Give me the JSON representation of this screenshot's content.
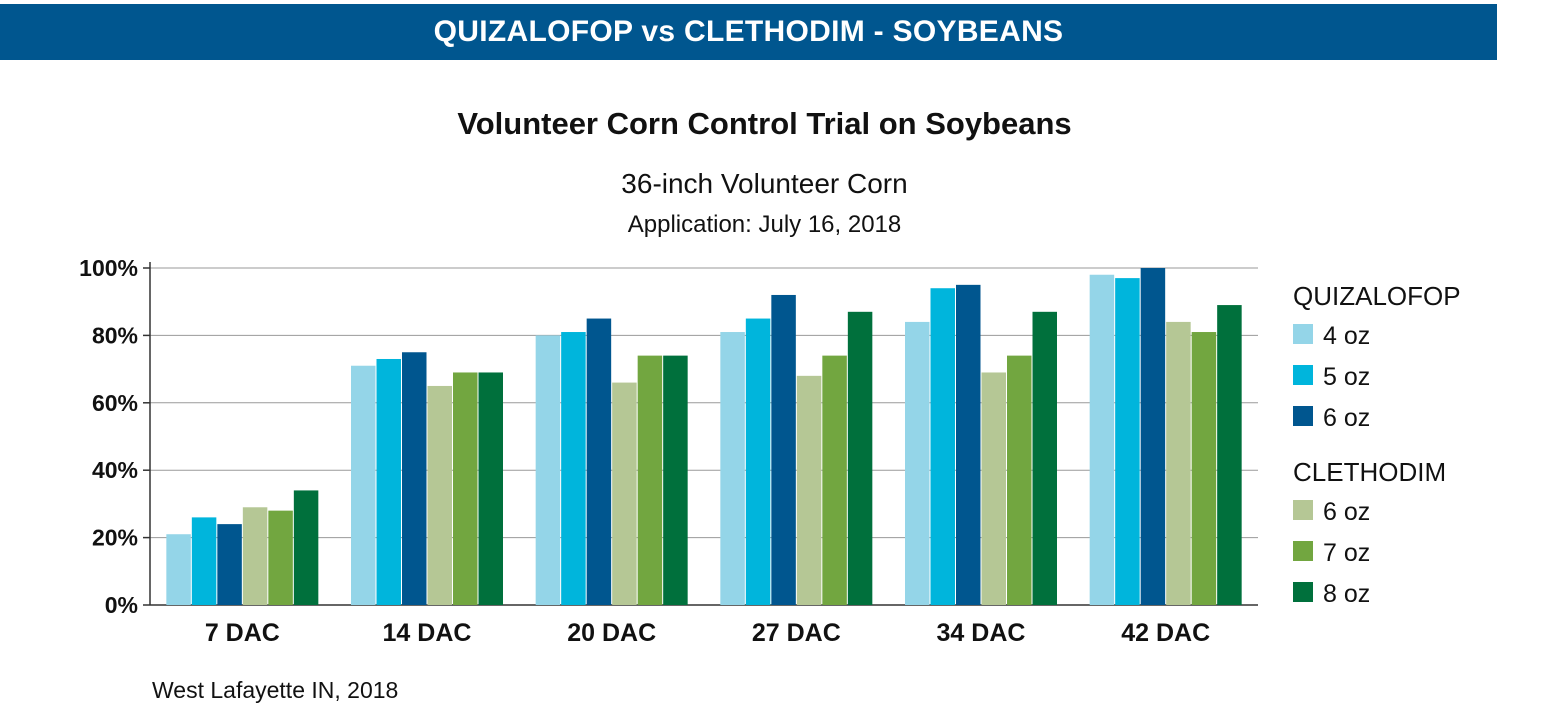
{
  "banner": {
    "text": "QUIZALOFOP vs CLETHODIM - SOYBEANS",
    "color": "#00568f"
  },
  "footnote": "West Lafayette IN, 2018",
  "chart_data": {
    "type": "bar",
    "title": "Volunteer Corn Control Trial on Soybeans",
    "subtitle": "36-inch Volunteer Corn",
    "subtitle2": "Application: July 16, 2018",
    "xlabel": "",
    "ylabel": "",
    "ylim": [
      0,
      100
    ],
    "yticks": [
      "0%",
      "20%",
      "40%",
      "60%",
      "80%",
      "100%"
    ],
    "grid": true,
    "legend_position": "right",
    "categories": [
      "7 DAC",
      "14 DAC",
      "20 DAC",
      "27 DAC",
      "34 DAC",
      "42 DAC"
    ],
    "groups": [
      {
        "name": "QUIZALOFOP",
        "series": [
          0,
          1,
          2
        ]
      },
      {
        "name": "CLETHODIM",
        "series": [
          3,
          4,
          5
        ]
      }
    ],
    "series": [
      {
        "name": "4 oz",
        "group": "QUIZALOFOP",
        "color": "#94d5e8",
        "values": [
          21,
          71,
          80,
          81,
          84,
          98
        ]
      },
      {
        "name": "5 oz",
        "group": "QUIZALOFOP",
        "color": "#00b5dc",
        "values": [
          26,
          73,
          81,
          85,
          94,
          97
        ]
      },
      {
        "name": "6 oz",
        "group": "QUIZALOFOP",
        "color": "#00568f",
        "values": [
          24,
          75,
          85,
          92,
          95,
          100
        ]
      },
      {
        "name": "6 oz",
        "group": "CLETHODIM",
        "color": "#b5c795",
        "values": [
          29,
          65,
          66,
          68,
          69,
          84
        ]
      },
      {
        "name": "7 oz",
        "group": "CLETHODIM",
        "color": "#72a640",
        "values": [
          28,
          69,
          74,
          74,
          74,
          81
        ]
      },
      {
        "name": "8 oz",
        "group": "CLETHODIM",
        "color": "#00703c",
        "values": [
          34,
          69,
          74,
          87,
          87,
          89
        ]
      }
    ]
  }
}
